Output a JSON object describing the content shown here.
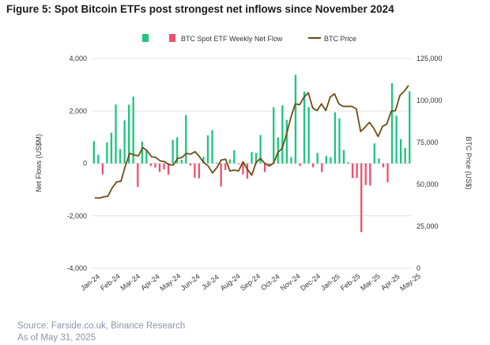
{
  "colors": {
    "inflow": "#1fc47f",
    "outflow": "#f0506e",
    "price": "#6b4e16",
    "grid": "#d9d9d9"
  },
  "chart_data": {
    "type": "bar",
    "title": "Figure 5: Spot Bitcoin ETFs post strongest net inflows since November 2024",
    "ylabel": "Net Flows (US$M)",
    "y2label": "BTC Price (US$)",
    "ylim": [
      -4000,
      4000
    ],
    "y2lim": [
      0,
      125000
    ],
    "yticks": [
      "-4,000",
      "-2,000",
      "0",
      "2,000",
      "4,000"
    ],
    "y2ticks": [
      "0",
      "25,000",
      "50,000",
      "75,000",
      "100,000",
      "125,000"
    ],
    "x_labels": [
      "Jan-24",
      "Feb-24",
      "Mar-24",
      "Apr-24",
      "May-24",
      "Jun-24",
      "Jul-24",
      "Aug-24",
      "Sep-24",
      "Oct-24",
      "Nov-24",
      "Dec-24",
      "Jan-25",
      "Feb-25",
      "Mar-25",
      "Apr-25",
      "May-25"
    ],
    "legend": [
      "BTC Spot ETF Weekly Net Flow",
      "BTC Price"
    ],
    "legend_position": "top",
    "grid": true,
    "series": [
      {
        "name": "BTC Spot ETF Weekly Net Flow",
        "type": "bar",
        "axis": "left",
        "values": [
          850,
          330,
          -420,
          800,
          1170,
          2250,
          550,
          1640,
          2240,
          2550,
          -900,
          830,
          470,
          -100,
          -160,
          -320,
          -230,
          -430,
          900,
          1000,
          140,
          1840,
          -80,
          -550,
          -570,
          250,
          1070,
          1270,
          30,
          -880,
          -250,
          150,
          500,
          -30,
          -420,
          -580,
          430,
          400,
          1080,
          -330,
          -60,
          2140,
          990,
          2220,
          1660,
          240,
          3380,
          -100,
          2740,
          2150,
          -150,
          400,
          -330,
          280,
          240,
          1950,
          1720,
          510,
          50,
          -560,
          -550,
          -2620,
          -820,
          -850,
          760,
          190,
          -150,
          -720,
          3060,
          1820,
          930,
          590,
          2750
        ]
      },
      {
        "name": "BTC Price",
        "type": "line",
        "axis": "right",
        "values": [
          42000,
          41800,
          42500,
          43000,
          48000,
          51500,
          51800,
          61000,
          68500,
          67500,
          67000,
          72000,
          70000,
          66500,
          66000,
          64000,
          63500,
          61800,
          61500,
          65500,
          66000,
          68500,
          68000,
          69500,
          66500,
          63000,
          61000,
          56800,
          60000,
          64500,
          65000,
          58000,
          58500,
          58000,
          63500,
          59000,
          55500,
          63000,
          65500,
          62500,
          61000,
          62500,
          69000,
          71500,
          80000,
          90000,
          98000,
          97500,
          102000,
          104500,
          95500,
          94000,
          98000,
          94000,
          102000,
          104000,
          98000,
          96500,
          96500,
          96500,
          95000,
          81500,
          84000,
          87000,
          83500,
          78500,
          84500,
          86000,
          93500,
          94000,
          103000,
          105500,
          109000
        ]
      }
    ]
  },
  "source": {
    "line1": "Source: Farside.co.uk, Binance Research",
    "line2": "As of May 31, 2025"
  }
}
